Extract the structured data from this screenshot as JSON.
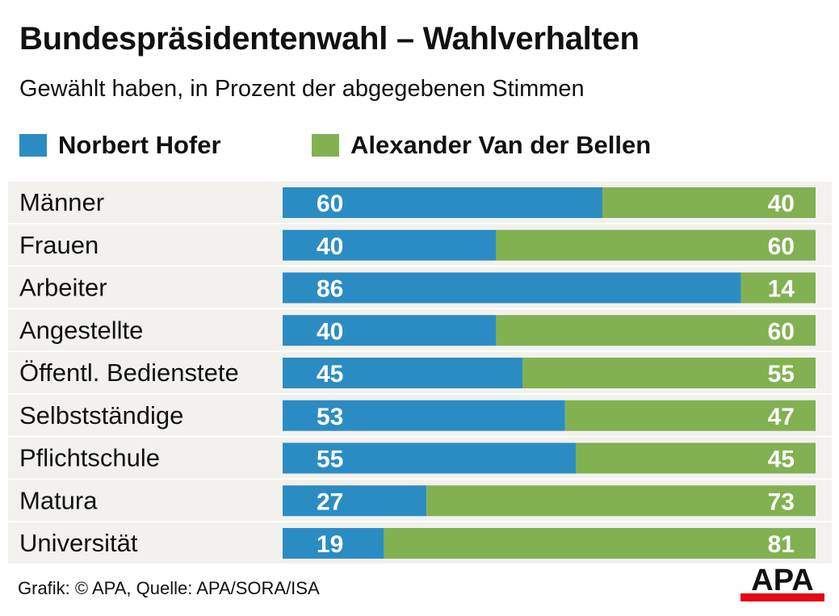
{
  "chart_data": {
    "type": "bar",
    "stacked": true,
    "orientation": "horizontal",
    "title": "Bundespräsidentenwahl – Wahlverhalten",
    "subtitle": "Gewählt haben, in Prozent der abgegebenen Stimmen",
    "categories": [
      "Männer",
      "Frauen",
      "Arbeiter",
      "Angestellte",
      "Öffentl. Bedienstete",
      "Selbstständige",
      "Pflichtschule",
      "Matura",
      "Universität"
    ],
    "series": [
      {
        "name": "Norbert Hofer",
        "color": "#2b8cc4",
        "values": [
          60,
          40,
          86,
          40,
          45,
          53,
          55,
          27,
          19
        ]
      },
      {
        "name": "Alexander Van der Bellen",
        "color": "#82b151",
        "values": [
          40,
          60,
          14,
          60,
          55,
          47,
          45,
          73,
          81
        ]
      }
    ],
    "xlim": [
      0,
      100
    ],
    "legend_position": "top-left",
    "grid": false
  },
  "row_background": "#f2f1ee",
  "footer": "Grafik: © APA, Quelle: APA/SORA/ISA",
  "logo": {
    "text": "APA",
    "accent": "#e30613"
  }
}
